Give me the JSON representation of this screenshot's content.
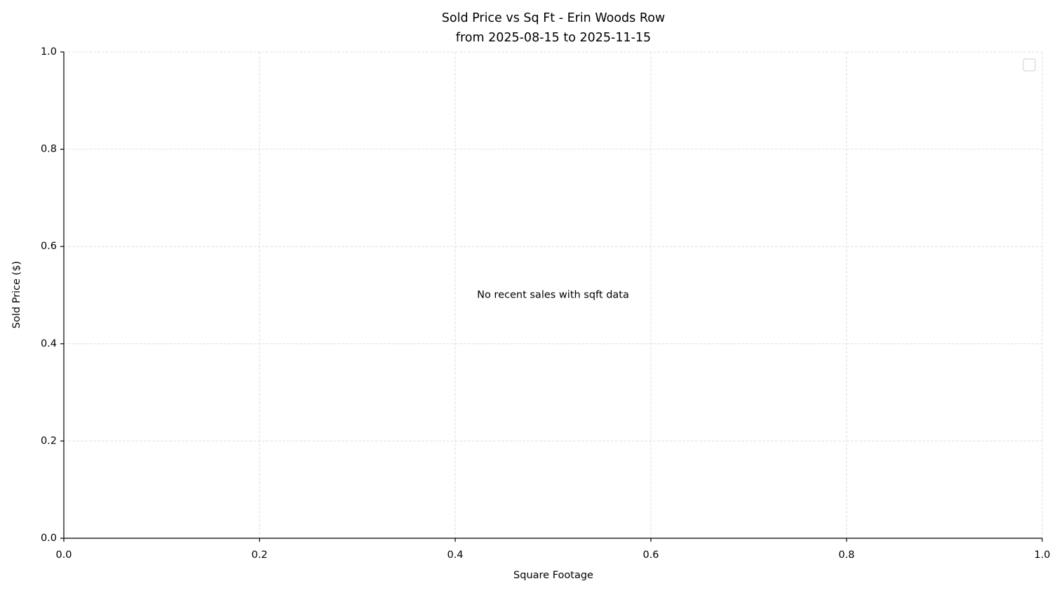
{
  "chart_data": {
    "type": "scatter",
    "title": "Sold Price vs Sq Ft - Erin Woods Row",
    "subtitle": "from 2025-08-15 to 2025-11-15",
    "x_label": "Square Footage",
    "y_label": "Sold Price ($)",
    "annotation": "No recent sales with sqft data",
    "series": [],
    "xlim": [
      0,
      1
    ],
    "ylim": [
      0,
      1
    ],
    "xticks": [
      {
        "value": 0,
        "label": "0.0"
      },
      0.2,
      0.4,
      0.6,
      0.8,
      {
        "value": 1,
        "label": "1.0"
      }
    ],
    "yticks": [
      {
        "value": 0,
        "label": "0.0"
      },
      0.2,
      0.4,
      0.6,
      0.8,
      {
        "value": 1,
        "label": "1.0"
      }
    ],
    "grid": true,
    "legend": "upper right"
  }
}
